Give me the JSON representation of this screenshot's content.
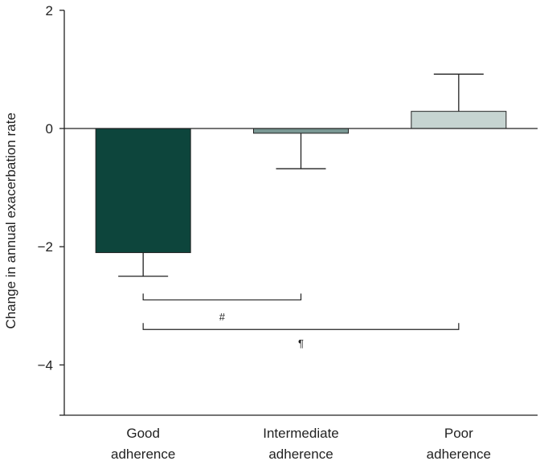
{
  "chart_data": {
    "type": "bar",
    "title": "",
    "xlabel": "",
    "ylabel": "Change in annual exacerbation rate",
    "ylim": [
      -5,
      2
    ],
    "yticks": [
      2,
      0,
      -2,
      -4
    ],
    "ytick_labels": [
      "2",
      "0",
      "−2",
      "−4"
    ],
    "categories": [
      [
        "Good",
        "adherence"
      ],
      [
        "Intermediate",
        "adherence"
      ],
      [
        "Poor",
        "adherence"
      ]
    ],
    "values": [
      -2.1,
      -0.08,
      0.29
    ],
    "error_bars": [
      -2.5,
      -0.68,
      0.92
    ],
    "colors": [
      "#0d453c",
      "#7a9894",
      "#c6d4d1"
    ],
    "comparisons": [
      {
        "from": 0,
        "to": 1,
        "label": "#"
      },
      {
        "from": 0,
        "to": 2,
        "label": "¶"
      }
    ]
  }
}
